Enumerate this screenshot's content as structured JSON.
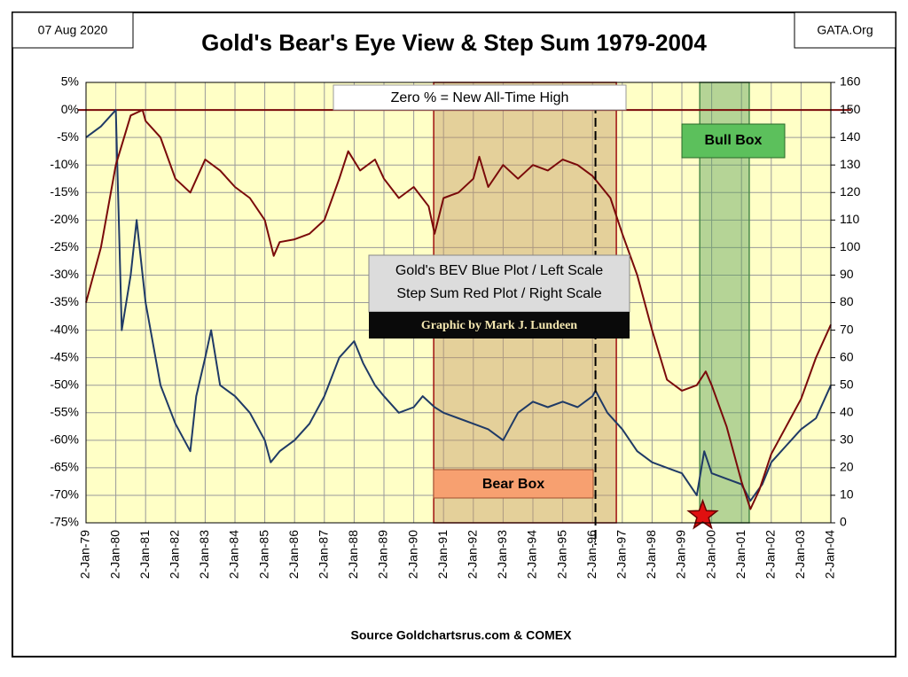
{
  "chart_data": {
    "type": "line",
    "title": "Gold's Bear's Eye View & Step Sum 1979-2004",
    "date_label": "07 Aug 2020",
    "brand": "GATA.Org",
    "source": "Source Goldchartsrus.com & COMEX",
    "annotation": "Zero % = New All-Time High",
    "legend_lines": [
      "Gold's BEV Blue Plot / Left Scale",
      "Step Sum  Red Plot / Right Scale"
    ],
    "credit": "Graphic by Mark J. Lundeen",
    "bear_box": {
      "label": "Bear Box",
      "x": [
        1990.67,
        1996.8
      ]
    },
    "bull_box": {
      "label": "Bull Box",
      "x": [
        1999.6,
        2001.26
      ]
    },
    "marker_x": 1996.1,
    "star_x": 1999.7,
    "reference_line": 0,
    "xlim": [
      1979,
      2004
    ],
    "xticks": [
      {
        "value": 1979,
        "label": "2-Jan-79"
      },
      {
        "value": 1980,
        "label": "2-Jan-80"
      },
      {
        "value": 1981,
        "label": "2-Jan-81"
      },
      {
        "value": 1982,
        "label": "2-Jan-82"
      },
      {
        "value": 1983,
        "label": "2-Jan-83"
      },
      {
        "value": 1984,
        "label": "2-Jan-84"
      },
      {
        "value": 1985,
        "label": "2-Jan-85"
      },
      {
        "value": 1986,
        "label": "2-Jan-86"
      },
      {
        "value": 1987,
        "label": "2-Jan-87"
      },
      {
        "value": 1988,
        "label": "2-Jan-88"
      },
      {
        "value": 1989,
        "label": "2-Jan-89"
      },
      {
        "value": 1990,
        "label": "2-Jan-90"
      },
      {
        "value": 1991,
        "label": "2-Jan-91"
      },
      {
        "value": 1992,
        "label": "2-Jan-92"
      },
      {
        "value": 1993,
        "label": "2-Jan-93"
      },
      {
        "value": 1994,
        "label": "2-Jan-94"
      },
      {
        "value": 1995,
        "label": "2-Jan-95"
      },
      {
        "value": 1996,
        "label": "2-Jan-96"
      },
      {
        "value": 1997,
        "label": "2-Jan-97"
      },
      {
        "value": 1998,
        "label": "2-Jan-98"
      },
      {
        "value": 1999,
        "label": "2-Jan-99"
      },
      {
        "value": 2000,
        "label": "2-Jan-00"
      },
      {
        "value": 2001,
        "label": "2-Jan-01"
      },
      {
        "value": 2002,
        "label": "2-Jan-02"
      },
      {
        "value": 2003,
        "label": "2-Jan-03"
      },
      {
        "value": 2004,
        "label": "2-Jan-04"
      }
    ],
    "ylim": [
      -75,
      5
    ],
    "yticks": [
      {
        "value": 5,
        "label": "5%"
      },
      {
        "value": 0,
        "label": "0%"
      },
      {
        "value": -5,
        "label": "-5%"
      },
      {
        "value": -10,
        "label": "-10%"
      },
      {
        "value": -15,
        "label": "-15%"
      },
      {
        "value": -20,
        "label": "-20%"
      },
      {
        "value": -25,
        "label": "-25%"
      },
      {
        "value": -30,
        "label": "-30%"
      },
      {
        "value": -35,
        "label": "-35%"
      },
      {
        "value": -40,
        "label": "-40%"
      },
      {
        "value": -45,
        "label": "-45%"
      },
      {
        "value": -50,
        "label": "-50%"
      },
      {
        "value": -55,
        "label": "-55%"
      },
      {
        "value": -60,
        "label": "-60%"
      },
      {
        "value": -65,
        "label": "-65%"
      },
      {
        "value": -70,
        "label": "-70%"
      },
      {
        "value": -75,
        "label": "-75%"
      }
    ],
    "y2lim": [
      0,
      160
    ],
    "y2ticks": [
      0,
      10,
      20,
      30,
      40,
      50,
      60,
      70,
      80,
      90,
      100,
      110,
      120,
      130,
      140,
      150,
      160
    ],
    "grid": true,
    "series": [
      {
        "name": "Gold's BEV",
        "color": "#1f3a66",
        "x": [
          1979.0,
          1979.5,
          1980.0,
          1980.1,
          1980.2,
          1980.5,
          1980.7,
          1980.9,
          1981.0,
          1981.5,
          1982.0,
          1982.5,
          1982.7,
          1983.0,
          1983.2,
          1983.5,
          1984.0,
          1984.5,
          1985.0,
          1985.2,
          1985.5,
          1986.0,
          1986.5,
          1987.0,
          1987.5,
          1988.0,
          1988.3,
          1988.7,
          1989.0,
          1989.5,
          1990.0,
          1990.3,
          1990.7,
          1991.0,
          1991.5,
          1992.0,
          1992.5,
          1993.0,
          1993.5,
          1994.0,
          1994.5,
          1995.0,
          1995.5,
          1996.0,
          1996.1,
          1996.5,
          1997.0,
          1997.5,
          1998.0,
          1998.5,
          1999.0,
          1999.5,
          1999.75,
          2000.0,
          2000.5,
          2001.0,
          2001.3,
          2001.7,
          2002.0,
          2002.5,
          2003.0,
          2003.5,
          2004.0
        ],
        "values": [
          -5,
          -3,
          0,
          -20,
          -40,
          -30,
          -20,
          -30,
          -35,
          -50,
          -57,
          -62,
          -52,
          -45,
          -40,
          -50,
          -52,
          -55,
          -60,
          -64,
          -62,
          -60,
          -57,
          -52,
          -45,
          -42,
          -46,
          -50,
          -52,
          -55,
          -54,
          -52,
          -54,
          -55,
          -56,
          -57,
          -58,
          -60,
          -55,
          -53,
          -54,
          -53,
          -54,
          -52,
          -51,
          -55,
          -58,
          -62,
          -64,
          -65,
          -66,
          -70,
          -62,
          -66,
          -67,
          -68,
          -71,
          -68,
          -64,
          -61,
          -58,
          -56,
          -50
        ]
      },
      {
        "name": "Step Sum",
        "color": "#7a0a0a",
        "axis": "y2",
        "x": [
          1979.0,
          1979.5,
          1980.0,
          1980.5,
          1980.9,
          1981.0,
          1981.5,
          1982.0,
          1982.5,
          1983.0,
          1983.5,
          1984.0,
          1984.5,
          1985.0,
          1985.3,
          1985.5,
          1986.0,
          1986.5,
          1987.0,
          1987.5,
          1987.8,
          1988.2,
          1988.7,
          1989.0,
          1989.5,
          1990.0,
          1990.5,
          1990.7,
          1991.0,
          1991.5,
          1992.0,
          1992.2,
          1992.5,
          1993.0,
          1993.5,
          1994.0,
          1994.5,
          1995.0,
          1995.5,
          1996.0,
          1996.3,
          1996.6,
          1997.0,
          1997.5,
          1997.8,
          1998.0,
          1998.5,
          1999.0,
          1999.5,
          1999.8,
          2000.0,
          2000.5,
          2001.0,
          2001.3,
          2001.6,
          2002.0,
          2002.5,
          2003.0,
          2003.5,
          2004.0
        ],
        "values": [
          80,
          100,
          130,
          148,
          150,
          146,
          140,
          125,
          120,
          132,
          128,
          122,
          118,
          110,
          97,
          102,
          103,
          105,
          110,
          125,
          135,
          128,
          132,
          125,
          118,
          122,
          115,
          105,
          118,
          120,
          125,
          133,
          122,
          130,
          125,
          130,
          128,
          132,
          130,
          126,
          122,
          118,
          105,
          90,
          78,
          70,
          52,
          48,
          50,
          55,
          50,
          35,
          15,
          5,
          12,
          25,
          35,
          45,
          60,
          72
        ]
      }
    ]
  }
}
